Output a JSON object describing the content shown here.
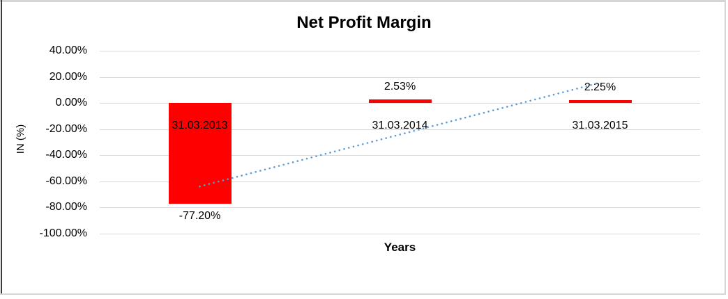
{
  "chart_data": {
    "type": "bar",
    "title": "Net Profit Margin",
    "xlabel": "Years",
    "ylabel": "IN (%)",
    "categories": [
      "31.03.2013",
      "31.03.2014",
      "31.03.2015"
    ],
    "values": [
      -77.2,
      2.53,
      2.25
    ],
    "data_labels": [
      "-77.20%",
      "2.53%",
      "2.25%"
    ],
    "ylim": [
      -100,
      40
    ],
    "ytick_step": 20,
    "ytick_labels": [
      "40.00%",
      "20.00%",
      "0.00%",
      "-20.00%",
      "-40.00%",
      "-60.00%",
      "-80.00%",
      "-100.00%"
    ],
    "grid": true,
    "legend": "none",
    "trendline": {
      "type": "linear",
      "style": "dotted"
    },
    "colors": {
      "bar": "#FF0000",
      "trendline": "#5B9BD5",
      "gridline": "#D9D9D9",
      "text": "#000000"
    }
  }
}
